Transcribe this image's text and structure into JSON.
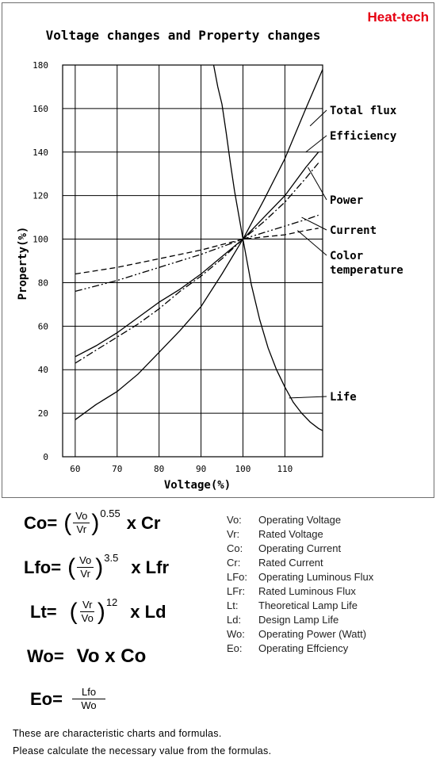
{
  "brand": "Heat-tech",
  "chart_data": {
    "type": "line",
    "title": "Voltage changes and Property changes",
    "xlabel": "Voltage(%)",
    "ylabel": "Property(%)",
    "xlim": [
      57,
      119
    ],
    "ylim": [
      0,
      180
    ],
    "xticks": [
      60,
      70,
      80,
      90,
      100,
      110
    ],
    "yticks": [
      0,
      20,
      40,
      60,
      80,
      100,
      120,
      140,
      160,
      180
    ],
    "grid": true,
    "series": [
      {
        "name": "Total flux",
        "style": "solid",
        "x": [
          60,
          65,
          70,
          75,
          80,
          85,
          90,
          95,
          100,
          105,
          110,
          115,
          119
        ],
        "y": [
          17,
          24,
          30,
          38,
          48,
          58,
          69,
          84,
          100,
          118,
          137,
          160,
          178
        ]
      },
      {
        "name": "Efficiency",
        "style": "solid",
        "x": [
          60,
          65,
          70,
          75,
          80,
          85,
          90,
          95,
          100,
          105,
          110,
          115,
          118
        ],
        "y": [
          46,
          51,
          57,
          64,
          71,
          77,
          84,
          92,
          100,
          110,
          120,
          133,
          140
        ]
      },
      {
        "name": "Power",
        "style": "dashdot",
        "x": [
          60,
          65,
          70,
          75,
          80,
          85,
          90,
          95,
          100,
          105,
          110,
          115,
          118
        ],
        "y": [
          43,
          49,
          55,
          61,
          68,
          76,
          83,
          91,
          100,
          108,
          117,
          128,
          135
        ]
      },
      {
        "name": "Current",
        "style": "dashdotdot",
        "x": [
          60,
          70,
          80,
          90,
          100,
          105,
          110,
          115,
          118
        ],
        "y": [
          76,
          81,
          87,
          93,
          100,
          103,
          106,
          109,
          111
        ]
      },
      {
        "name": "Color temperature",
        "style": "dashed",
        "x": [
          60,
          70,
          80,
          90,
          100,
          105,
          110,
          115,
          118
        ],
        "y": [
          84,
          87,
          91,
          95,
          100,
          101,
          102,
          104,
          105
        ]
      },
      {
        "name": "Life",
        "style": "solid",
        "x": [
          93,
          94,
          95,
          96,
          97,
          98,
          99,
          100,
          102,
          104,
          106,
          108,
          110,
          112,
          114,
          116,
          118,
          119
        ],
        "y": [
          180,
          170,
          162,
          149,
          135,
          122,
          111,
          100,
          79,
          63,
          50,
          40,
          32,
          25,
          20,
          16,
          13,
          12
        ]
      }
    ]
  },
  "formulas": {
    "co": {
      "lhs": "Co",
      "eq": "=",
      "num": "Vo",
      "den": "Vr",
      "exp": "0.55",
      "rhs": "x Cr"
    },
    "lfo": {
      "lhs": "Lfo",
      "eq": "=",
      "num": "Vo",
      "den": "Vr",
      "exp": "3.5",
      "rhs": "x Lfr"
    },
    "lt": {
      "lhs": "Lt",
      "eq": "=",
      "num": "Vr",
      "den": "Vo",
      "exp": "12",
      "rhs": "x Ld"
    },
    "wo": {
      "lhs": "Wo",
      "eq": "=",
      "rhs": "Vo x Co"
    },
    "eo": {
      "lhs": "Eo",
      "eq": "=",
      "num": "Lfo",
      "den": "Wo"
    }
  },
  "legend": [
    {
      "key": "Vo:",
      "text": "Operating Voltage"
    },
    {
      "key": "Vr:",
      "text": "Rated Voltage"
    },
    {
      "key": "Co:",
      "text": "Operating Current"
    },
    {
      "key": "Cr:",
      "text": "Rated Current"
    },
    {
      "key": "LFo:",
      "text": "Operating Luminous Flux"
    },
    {
      "key": "LFr:",
      "text": "Rated Luminous Flux"
    },
    {
      "key": "Lt:",
      "text": "Theoretical Lamp Life"
    },
    {
      "key": "Ld:",
      "text": "Design Lamp Life"
    },
    {
      "key": "Wo:",
      "text": "Operating Power (Watt)"
    },
    {
      "key": "Eo:",
      "text": "Operating Effciency"
    }
  ],
  "notes": [
    "These are characteristic charts and formulas.",
    "Please calculate the necessary value from the formulas."
  ]
}
